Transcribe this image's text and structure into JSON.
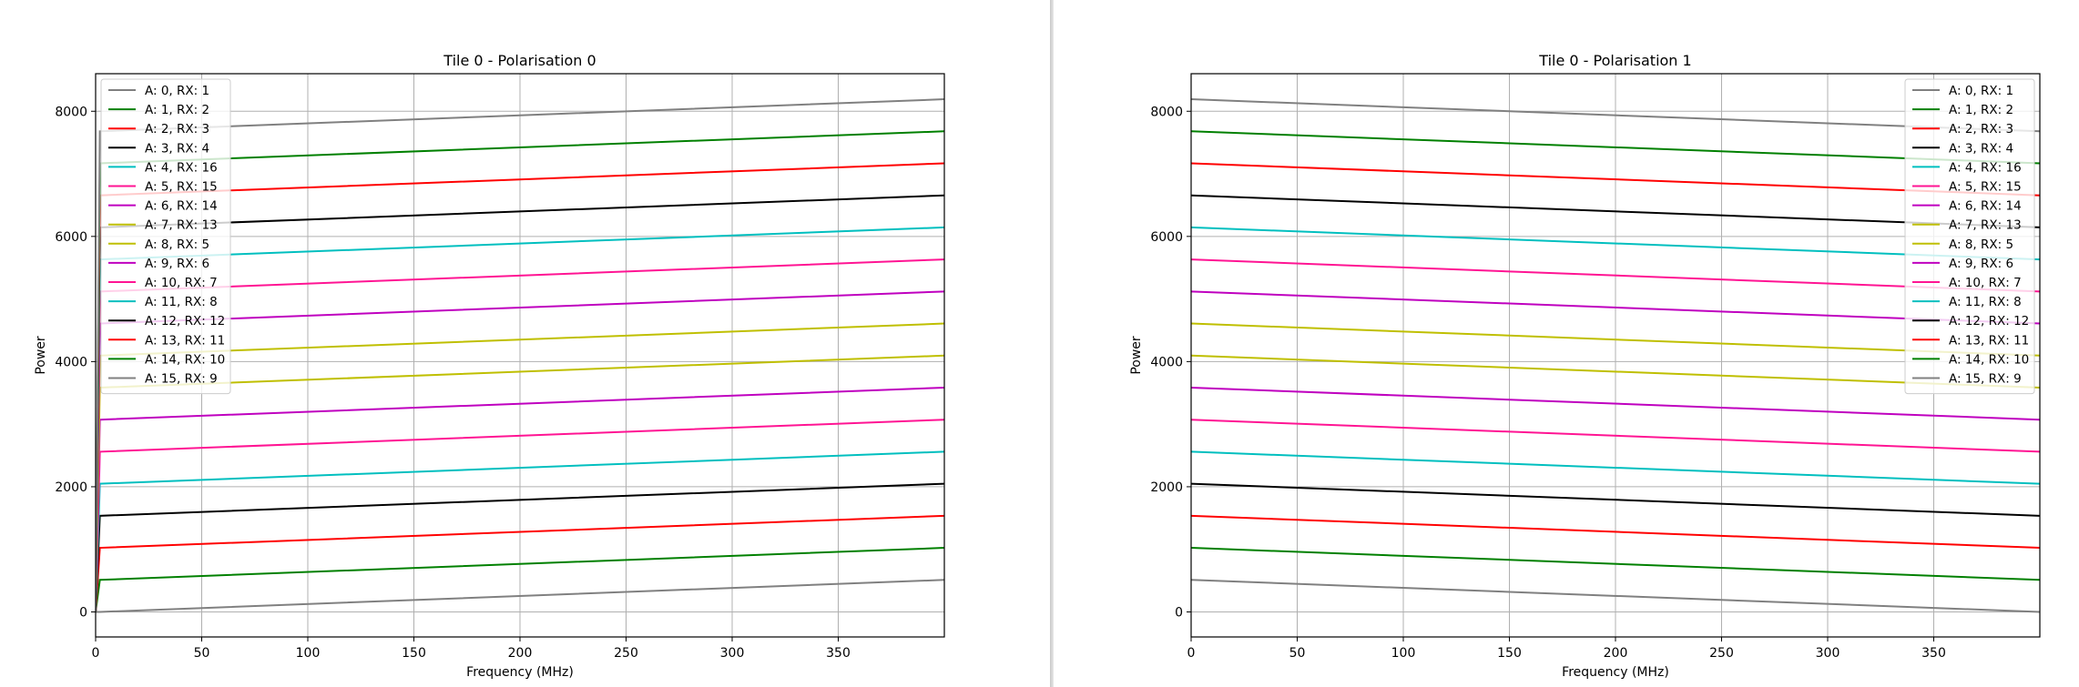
{
  "chart_data": [
    {
      "type": "line",
      "title": "Tile 0 - Polarisation 0",
      "xlabel": "Frequency (MHz)",
      "ylabel": "Power",
      "xlim": [
        0,
        400
      ],
      "ylim": [
        -400,
        8600
      ],
      "xticks": [
        0,
        50,
        100,
        150,
        200,
        250,
        300,
        350
      ],
      "yticks": [
        0,
        2000,
        4000,
        6000,
        8000
      ],
      "grid": true,
      "legend_position": "top-left",
      "series": [
        {
          "name": "A: 0, RX: 1",
          "color": "#808080",
          "x": [
            0,
            2,
            400
          ],
          "y": [
            0,
            0,
            512
          ]
        },
        {
          "name": "A: 1, RX: 2",
          "color": "#008000",
          "x": [
            0,
            2,
            400
          ],
          "y": [
            0,
            512,
            1024
          ]
        },
        {
          "name": "A: 2, RX: 3",
          "color": "#ff0000",
          "x": [
            0,
            2,
            400
          ],
          "y": [
            0,
            1024,
            1536
          ]
        },
        {
          "name": "A: 3, RX: 4",
          "color": "#000000",
          "x": [
            0,
            2,
            400
          ],
          "y": [
            0,
            1536,
            2048
          ]
        },
        {
          "name": "A: 4, RX: 16",
          "color": "#00bfbf",
          "x": [
            0,
            2,
            400
          ],
          "y": [
            0,
            2048,
            2560
          ]
        },
        {
          "name": "A: 5, RX: 15",
          "color": "#ff1493",
          "x": [
            0,
            2,
            400
          ],
          "y": [
            0,
            2560,
            3072
          ]
        },
        {
          "name": "A: 6, RX: 14",
          "color": "#bf00bf",
          "x": [
            0,
            2,
            400
          ],
          "y": [
            0,
            3072,
            3584
          ]
        },
        {
          "name": "A: 7, RX: 13",
          "color": "#bfbf00",
          "x": [
            0,
            2,
            400
          ],
          "y": [
            0,
            3584,
            4096
          ]
        },
        {
          "name": "A: 8, RX: 5",
          "color": "#bfbf00",
          "x": [
            0,
            2,
            400
          ],
          "y": [
            0,
            4096,
            4608
          ]
        },
        {
          "name": "A: 9, RX: 6",
          "color": "#bf00bf",
          "x": [
            0,
            2,
            400
          ],
          "y": [
            0,
            4608,
            5120
          ]
        },
        {
          "name": "A: 10, RX: 7",
          "color": "#ff1493",
          "x": [
            0,
            2,
            400
          ],
          "y": [
            0,
            5120,
            5632
          ]
        },
        {
          "name": "A: 11, RX: 8",
          "color": "#00bfbf",
          "x": [
            0,
            2,
            400
          ],
          "y": [
            0,
            5632,
            6144
          ]
        },
        {
          "name": "A: 12, RX: 12",
          "color": "#000000",
          "x": [
            0,
            2,
            400
          ],
          "y": [
            0,
            6144,
            6656
          ]
        },
        {
          "name": "A: 13, RX: 11",
          "color": "#ff0000",
          "x": [
            0,
            2,
            400
          ],
          "y": [
            0,
            6656,
            7168
          ]
        },
        {
          "name": "A: 14, RX: 10",
          "color": "#008000",
          "x": [
            0,
            2,
            400
          ],
          "y": [
            0,
            7168,
            7680
          ]
        },
        {
          "name": "A: 15, RX: 9",
          "color": "#808080",
          "x": [
            0,
            2,
            400
          ],
          "y": [
            0,
            7680,
            8192
          ]
        }
      ]
    },
    {
      "type": "line",
      "title": "Tile 0 - Polarisation 1",
      "xlabel": "Frequency (MHz)",
      "ylabel": "Power",
      "xlim": [
        0,
        400
      ],
      "ylim": [
        -400,
        8600
      ],
      "xticks": [
        0,
        50,
        100,
        150,
        200,
        250,
        300,
        350
      ],
      "yticks": [
        0,
        2000,
        4000,
        6000,
        8000
      ],
      "grid": true,
      "legend_position": "top-right",
      "series": [
        {
          "name": "A: 0, RX: 1",
          "color": "#808080",
          "x": [
            0,
            400
          ],
          "y": [
            512,
            0
          ]
        },
        {
          "name": "A: 1, RX: 2",
          "color": "#008000",
          "x": [
            0,
            400
          ],
          "y": [
            1024,
            512
          ]
        },
        {
          "name": "A: 2, RX: 3",
          "color": "#ff0000",
          "x": [
            0,
            400
          ],
          "y": [
            1536,
            1024
          ]
        },
        {
          "name": "A: 3, RX: 4",
          "color": "#000000",
          "x": [
            0,
            400
          ],
          "y": [
            2048,
            1536
          ]
        },
        {
          "name": "A: 4, RX: 16",
          "color": "#00bfbf",
          "x": [
            0,
            400
          ],
          "y": [
            2560,
            2048
          ]
        },
        {
          "name": "A: 5, RX: 15",
          "color": "#ff1493",
          "x": [
            0,
            400
          ],
          "y": [
            3072,
            2560
          ]
        },
        {
          "name": "A: 6, RX: 14",
          "color": "#bf00bf",
          "x": [
            0,
            400
          ],
          "y": [
            3584,
            3072
          ]
        },
        {
          "name": "A: 7, RX: 13",
          "color": "#bfbf00",
          "x": [
            0,
            400
          ],
          "y": [
            4096,
            3584
          ]
        },
        {
          "name": "A: 8, RX: 5",
          "color": "#bfbf00",
          "x": [
            0,
            400
          ],
          "y": [
            4608,
            4096
          ]
        },
        {
          "name": "A: 9, RX: 6",
          "color": "#bf00bf",
          "x": [
            0,
            400
          ],
          "y": [
            5120,
            4608
          ]
        },
        {
          "name": "A: 10, RX: 7",
          "color": "#ff1493",
          "x": [
            0,
            400
          ],
          "y": [
            5632,
            5120
          ]
        },
        {
          "name": "A: 11, RX: 8",
          "color": "#00bfbf",
          "x": [
            0,
            400
          ],
          "y": [
            6144,
            5632
          ]
        },
        {
          "name": "A: 12, RX: 12",
          "color": "#000000",
          "x": [
            0,
            400
          ],
          "y": [
            6656,
            6144
          ]
        },
        {
          "name": "A: 13, RX: 11",
          "color": "#ff0000",
          "x": [
            0,
            400
          ],
          "y": [
            7168,
            6656
          ]
        },
        {
          "name": "A: 14, RX: 10",
          "color": "#008000",
          "x": [
            0,
            400
          ],
          "y": [
            7680,
            7168
          ]
        },
        {
          "name": "A: 15, RX: 9",
          "color": "#808080",
          "x": [
            0,
            400
          ],
          "y": [
            8192,
            7680
          ]
        }
      ]
    }
  ]
}
